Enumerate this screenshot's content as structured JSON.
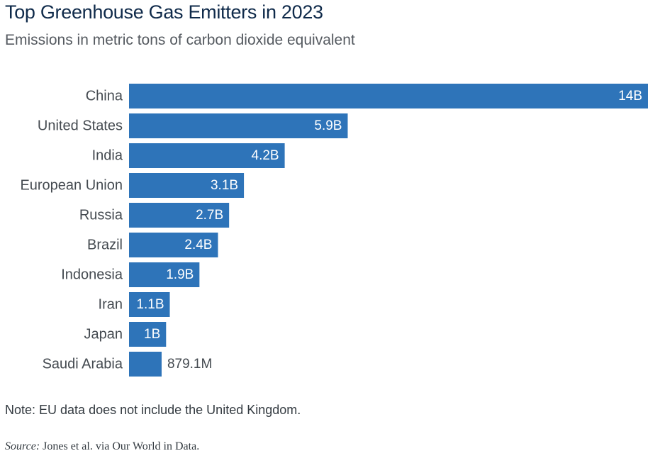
{
  "title": "Top Greenhouse Gas Emitters in 2023",
  "subtitle": "Emissions in metric tons of carbon dioxide equivalent",
  "note": "Note: EU data does not include the United Kingdom.",
  "source": {
    "label": "Source:",
    "text": "Jones et al. via Our World in Data."
  },
  "colors": {
    "bar": "#2e74b9",
    "label_inside": "#ffffff",
    "label_outside": "#444a50"
  },
  "chart_data": {
    "type": "bar",
    "orientation": "horizontal",
    "categories": [
      "China",
      "United States",
      "India",
      "European Union",
      "Russia",
      "Brazil",
      "Indonesia",
      "Iran",
      "Japan",
      "Saudi Arabia"
    ],
    "values": [
      14000000000,
      5900000000,
      4200000000,
      3100000000,
      2700000000,
      2400000000,
      1900000000,
      1100000000,
      1000000000,
      879100000
    ],
    "value_labels": [
      "14B",
      "5.9B",
      "4.2B",
      "3.1B",
      "2.7B",
      "2.4B",
      "1.9B",
      "1.1B",
      "1B",
      "879.1M"
    ],
    "xlim": [
      0,
      14000000000
    ],
    "grid": false,
    "legend": "none"
  }
}
